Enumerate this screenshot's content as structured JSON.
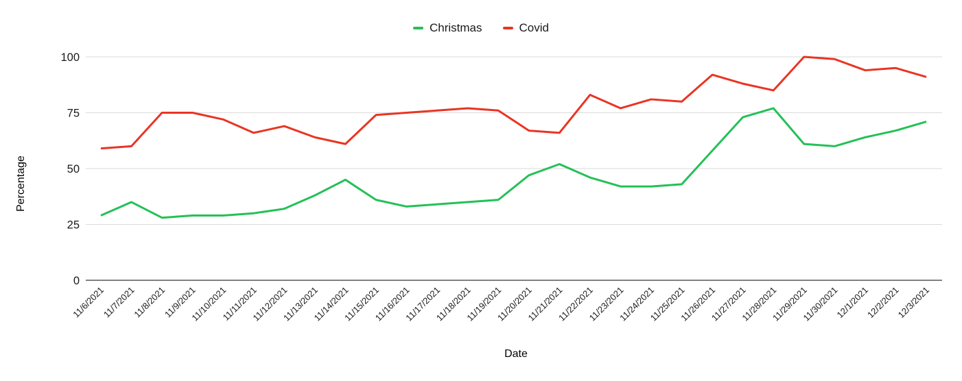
{
  "chart_data": {
    "type": "line",
    "title": "",
    "xlabel": "Date",
    "ylabel": "Percentage",
    "legend_position": "top-center",
    "grid": true,
    "ylim": [
      0,
      100
    ],
    "yticks": [
      0,
      25,
      50,
      75,
      100
    ],
    "categories": [
      "11/6/2021",
      "11/7/2021",
      "11/8/2021",
      "11/9/2021",
      "11/10/2021",
      "11/11/2021",
      "11/12/2021",
      "11/13/2021",
      "11/14/2021",
      "11/15/2021",
      "11/16/2021",
      "11/17/2021",
      "11/18/2021",
      "11/19/2021",
      "11/20/2021",
      "11/21/2021",
      "11/22/2021",
      "11/23/2021",
      "11/24/2021",
      "11/25/2021",
      "11/26/2021",
      "11/27/2021",
      "11/28/2021",
      "11/29/2021",
      "11/30/2021",
      "12/1/2021",
      "12/2/2021",
      "12/3/2021"
    ],
    "series": [
      {
        "name": "Christmas",
        "color": "#24c056",
        "values": [
          29,
          35,
          28,
          29,
          29,
          30,
          32,
          38,
          45,
          36,
          33,
          34,
          35,
          36,
          47,
          52,
          46,
          42,
          42,
          43,
          58,
          73,
          77,
          61,
          60,
          64,
          67,
          71
        ]
      },
      {
        "name": "Covid",
        "color": "#ea3423",
        "values": [
          59,
          60,
          75,
          75,
          72,
          66,
          69,
          64,
          61,
          74,
          75,
          76,
          77,
          76,
          67,
          66,
          83,
          77,
          81,
          80,
          92,
          88,
          85,
          100,
          99,
          94,
          95,
          91
        ]
      }
    ],
    "axis_color": "#000000",
    "grid_color": "#d9d9d9",
    "tick_label_color": "#1a1a1a"
  }
}
